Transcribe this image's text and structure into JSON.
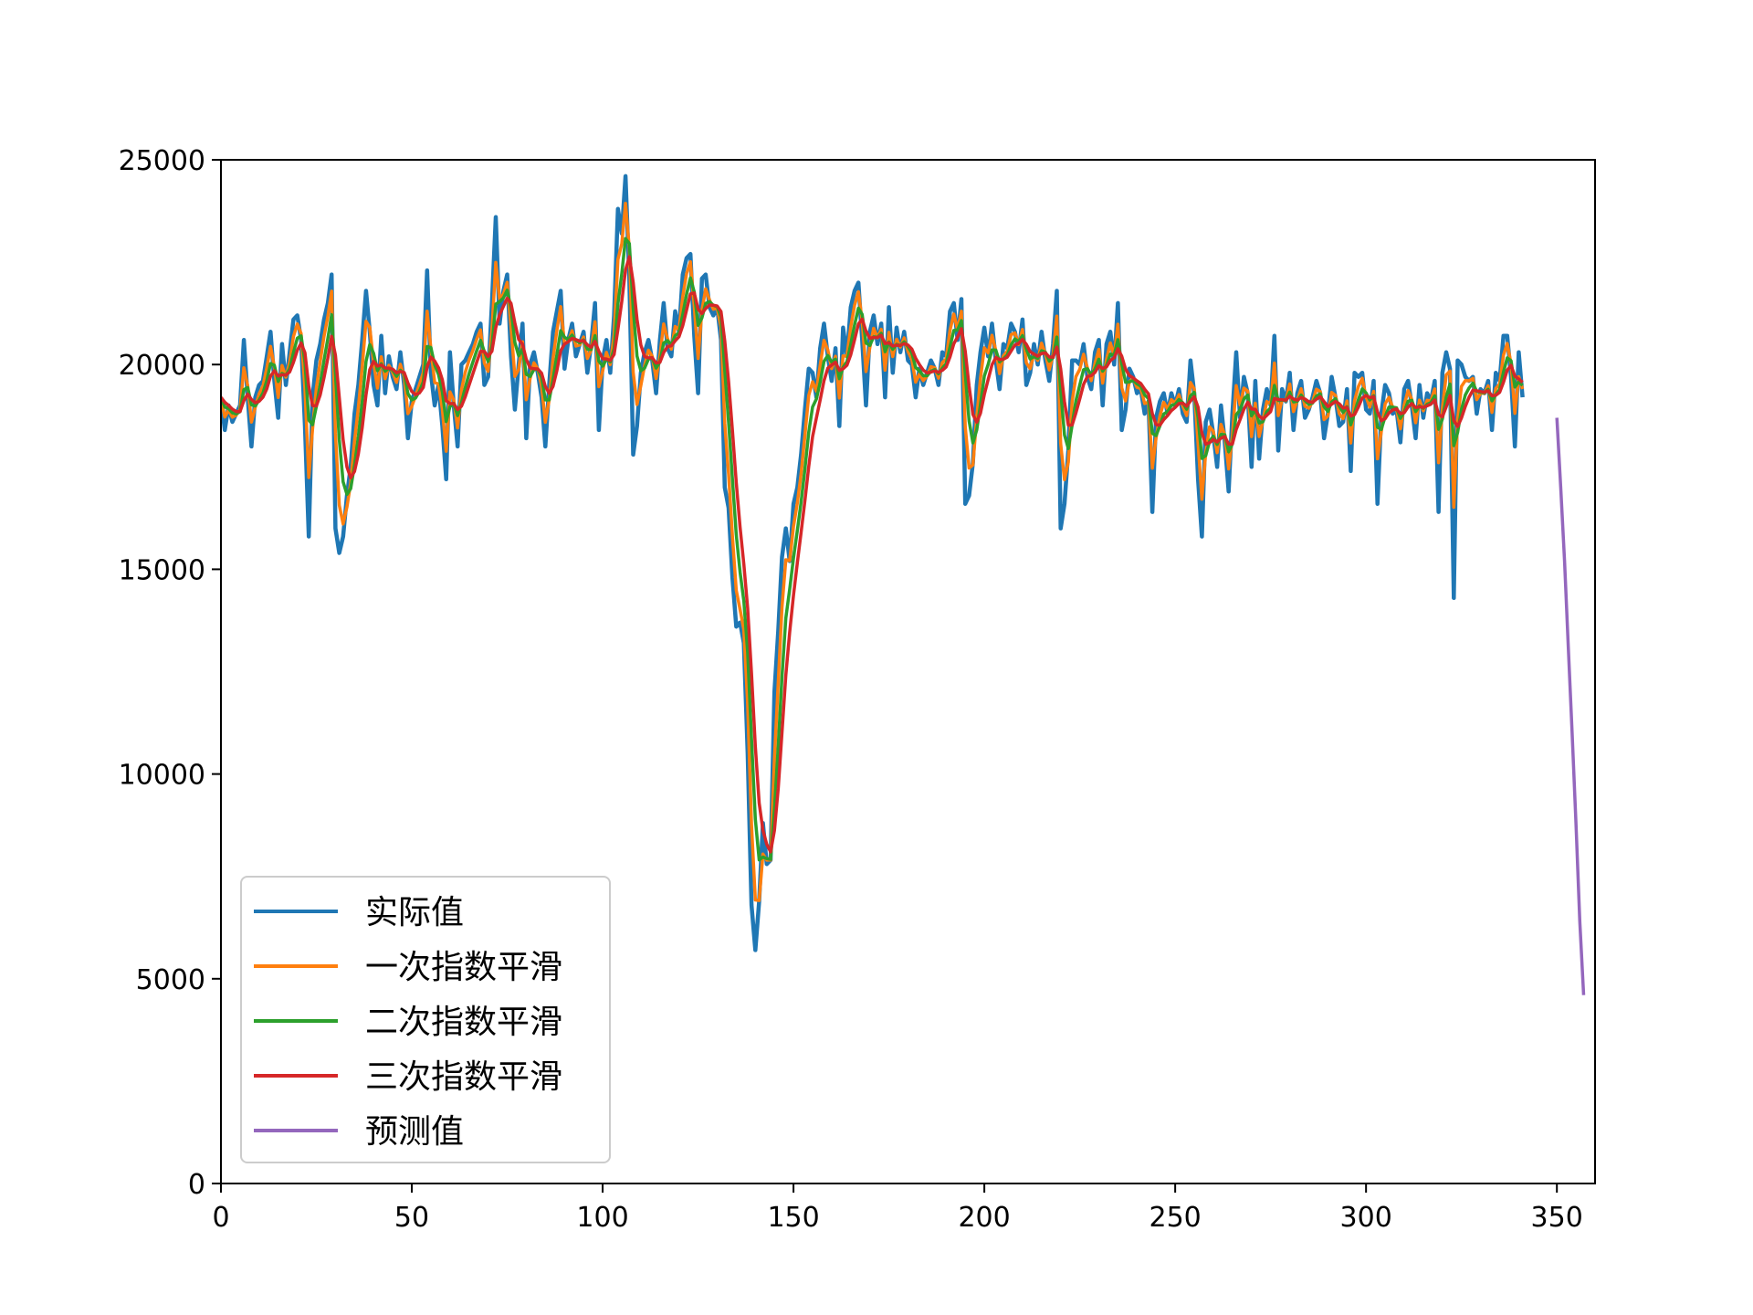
{
  "chart_data": {
    "type": "line",
    "title": "",
    "xlabel": "",
    "ylabel": "",
    "xlim": [
      0,
      360
    ],
    "ylim": [
      0,
      25000
    ],
    "xticks": [
      0,
      50,
      100,
      150,
      200,
      250,
      300,
      350
    ],
    "yticks": [
      0,
      5000,
      10000,
      15000,
      20000,
      25000
    ],
    "xtick_labels": [
      "0",
      "50",
      "100",
      "150",
      "200",
      "250",
      "300",
      "350"
    ],
    "ytick_labels": [
      "0",
      "5000",
      "10000",
      "15000",
      "20000",
      "25000"
    ],
    "grid": false,
    "legend_position": "lower-left",
    "series": [
      {
        "name": "实际值",
        "color": "#1f77b4",
        "x_start": 0,
        "values": [
          19200,
          18400,
          19000,
          18600,
          18800,
          19000,
          20600,
          19200,
          18000,
          19200,
          19500,
          19600,
          20200,
          20800,
          19600,
          18700,
          20500,
          19500,
          20300,
          21100,
          21200,
          20600,
          18500,
          15800,
          19200,
          20100,
          20500,
          21100,
          21500,
          22200,
          16000,
          15400,
          15800,
          16800,
          17500,
          18800,
          19500,
          20600,
          21800,
          20800,
          19500,
          19000,
          20700,
          19300,
          20200,
          19700,
          19400,
          20300,
          19500,
          18200,
          19100,
          19400,
          19700,
          20000,
          22300,
          19800,
          19000,
          19500,
          18500,
          17200,
          20300,
          19000,
          18000,
          20000,
          20100,
          20300,
          20500,
          20800,
          21000,
          19500,
          19700,
          21500,
          23600,
          21000,
          21800,
          22200,
          20200,
          18900,
          20000,
          21000,
          18200,
          20000,
          20300,
          19800,
          19200,
          18000,
          19500,
          20800,
          21300,
          21800,
          19900,
          20600,
          21000,
          20200,
          20500,
          20800,
          19800,
          20500,
          21500,
          18400,
          20100,
          20600,
          19800,
          21200,
          23800,
          23200,
          24600,
          22100,
          17800,
          18500,
          19800,
          20300,
          20600,
          20100,
          19300,
          20600,
          21500,
          20400,
          20200,
          21300,
          20800,
          22200,
          22600,
          22700,
          20700,
          19300,
          22100,
          22200,
          21400,
          21200,
          21400,
          20600,
          17000,
          16500,
          14800,
          13600,
          13700,
          13200,
          10500,
          6800,
          5700,
          6900,
          8800,
          7800,
          7900,
          12000,
          13500,
          15300,
          16000,
          15200,
          16600,
          17000,
          17800,
          18900,
          19900,
          19800,
          19200,
          20400,
          21000,
          20200,
          19600,
          20400,
          18500,
          20900,
          20200,
          21400,
          21800,
          22000,
          20600,
          19000,
          20800,
          21200,
          20500,
          21000,
          19200,
          21400,
          19800,
          20900,
          20300,
          20800,
          20100,
          20000,
          19200,
          19900,
          19500,
          19800,
          20100,
          19900,
          19500,
          20300,
          20200,
          21300,
          21500,
          20600,
          21600,
          16600,
          16800,
          17600,
          19500,
          20300,
          20900,
          20200,
          21000,
          20100,
          19400,
          20500,
          20400,
          21000,
          20800,
          20300,
          21100,
          19500,
          19800,
          20500,
          20000,
          20800,
          20100,
          19600,
          20500,
          21800,
          16000,
          16600,
          17900,
          20100,
          20100,
          20000,
          20500,
          19700,
          19400,
          20300,
          20600,
          19000,
          20500,
          20800,
          20000,
          21500,
          18400,
          18900,
          19900,
          19700,
          19300,
          19400,
          18800,
          19100,
          16400,
          18700,
          19100,
          19300,
          18800,
          19300,
          19000,
          19400,
          18800,
          18600,
          20100,
          19300,
          17200,
          15800,
          18600,
          18900,
          18300,
          17500,
          19000,
          18100,
          16900,
          18800,
          20300,
          18700,
          19700,
          19300,
          17500,
          19600,
          17700,
          18900,
          19400,
          19000,
          20700,
          17900,
          19400,
          19100,
          19800,
          18400,
          19300,
          19600,
          18700,
          18900,
          19200,
          19600,
          19300,
          18200,
          18800,
          19700,
          19200,
          18500,
          18600,
          19400,
          17400,
          19800,
          19700,
          19800,
          18900,
          18800,
          19600,
          16600,
          18800,
          19500,
          19300,
          18800,
          18900,
          18100,
          19400,
          19600,
          19000,
          18200,
          19500,
          18700,
          19300,
          19100,
          19600,
          16400,
          19800,
          20300,
          19900,
          14300,
          20100,
          20000,
          19700,
          19600,
          19700,
          18800,
          19400,
          19300,
          19600,
          18400,
          19800,
          19600,
          20700,
          20700,
          19700,
          18000,
          20300,
          19200
        ],
        "alpha": 0.6
      },
      {
        "name": "一次指数平滑",
        "color": "#ff7f0e",
        "x_start": 0,
        "alpha": 0.6
      },
      {
        "name": "二次指数平滑",
        "color": "#2ca02c",
        "x_start": 0,
        "alpha": 0.5
      },
      {
        "name": "三次指数平滑",
        "color": "#d62728",
        "x_start": 0,
        "alpha": 0.5
      },
      {
        "name": "预测值",
        "color": "#9467bd",
        "x_start": 350,
        "values": [
          18700,
          17000,
          15200,
          13100,
          11000,
          8800,
          6400,
          4600
        ]
      }
    ]
  }
}
